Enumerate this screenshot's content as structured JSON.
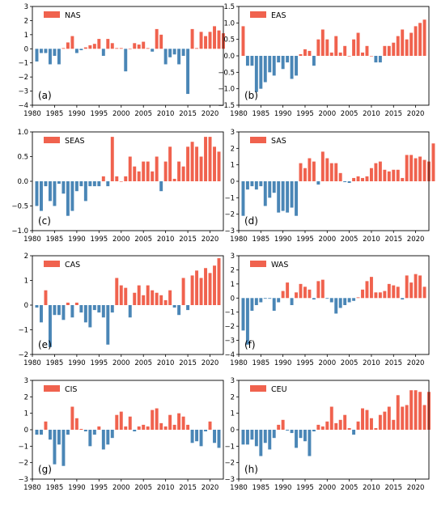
{
  "chart_data": [
    {
      "type": "bar",
      "panel": "a",
      "tag": "(a)",
      "legend": "NAS",
      "x_start": 1981,
      "values": [
        -0.9,
        -0.3,
        -0.3,
        -1.1,
        -0.5,
        -1.1,
        0.05,
        0.45,
        0.9,
        -0.3,
        -0.1,
        0.1,
        0.25,
        0.35,
        0.7,
        -0.5,
        0.7,
        0.4,
        0.05,
        0.05,
        -1.6,
        0.0,
        0.4,
        0.3,
        0.5,
        0.05,
        -0.2,
        1.4,
        1.0,
        -1.1,
        -0.6,
        -0.4,
        -1.1,
        -0.5,
        -3.2,
        1.4,
        0.05,
        1.2,
        0.9,
        1.2,
        1.6,
        1.3,
        1.1
      ],
      "ylim": [
        -4,
        3
      ],
      "yticks": [
        3,
        2,
        1,
        0,
        -1,
        -2,
        -3,
        -4
      ],
      "ytick_labels": [
        "3",
        "2",
        "1",
        "0",
        "−1",
        "−2",
        "−3",
        "−4"
      ],
      "xlim": [
        1980,
        2023
      ],
      "xticks": [
        1980,
        1985,
        1990,
        1995,
        2000,
        2005,
        2010,
        2015,
        2020
      ],
      "xtick_labels": [
        "1980",
        "1985",
        "1990",
        "1995",
        "2000",
        "2005",
        "2010",
        "2015",
        "2020"
      ]
    },
    {
      "type": "bar",
      "panel": "b",
      "tag": "(b)",
      "legend": "EAS",
      "x_start": 1981,
      "values": [
        0.9,
        -0.3,
        -0.3,
        -1.1,
        -1.0,
        -0.8,
        -0.5,
        -0.6,
        -0.2,
        -0.4,
        -0.2,
        -0.7,
        -0.6,
        0.05,
        0.2,
        0.15,
        -0.3,
        0.5,
        0.8,
        0.5,
        0.1,
        0.6,
        0.1,
        0.3,
        0.0,
        0.5,
        0.7,
        0.1,
        0.3,
        0.0,
        -0.2,
        -0.2,
        0.3,
        0.3,
        0.4,
        0.6,
        0.8,
        0.5,
        0.7,
        0.9,
        1.0,
        1.1
      ],
      "ylim": [
        -1.5,
        1.5
      ],
      "yticks": [
        1.5,
        1.0,
        0.5,
        0.0,
        -0.5,
        -1.0,
        -1.5
      ],
      "ytick_labels": [
        "1.5",
        "1.0",
        "0.5",
        "0.0",
        "−0.5",
        "−1.0",
        "−1.5"
      ],
      "xlim": [
        1980,
        2023
      ],
      "xticks": [
        1980,
        1985,
        1990,
        1995,
        2000,
        2005,
        2010,
        2015,
        2020
      ],
      "xtick_labels": [
        "1980",
        "1985",
        "1990",
        "1995",
        "2000",
        "2005",
        "2010",
        "2015",
        "2020"
      ]
    },
    {
      "type": "bar",
      "panel": "c",
      "tag": "(c)",
      "legend": "SEAS",
      "x_start": 1981,
      "values": [
        -0.5,
        -0.6,
        -0.1,
        -0.4,
        -0.5,
        -0.05,
        -0.25,
        -0.7,
        -0.6,
        -0.2,
        -0.1,
        -0.4,
        -0.1,
        -0.1,
        -0.1,
        0.1,
        -0.1,
        0.9,
        0.1,
        0.0,
        0.1,
        0.5,
        0.3,
        0.2,
        0.4,
        0.4,
        0.2,
        0.5,
        -0.2,
        0.4,
        0.7,
        0.05,
        0.4,
        0.3,
        0.7,
        0.8,
        0.7,
        0.5,
        0.9,
        0.9,
        0.7,
        0.6
      ],
      "ylim": [
        -1.0,
        1.0
      ],
      "yticks": [
        1.0,
        0.5,
        0.0,
        -0.5,
        -1.0
      ],
      "ytick_labels": [
        "1.0",
        "0.5",
        "0.0",
        "−0.5",
        "−1.0"
      ],
      "xlim": [
        1980,
        2023
      ],
      "xticks": [
        1980,
        1985,
        1990,
        1995,
        2000,
        2005,
        2010,
        2015,
        2020
      ],
      "xtick_labels": [
        "1980",
        "1985",
        "1990",
        "1995",
        "2000",
        "2005",
        "2010",
        "2015",
        "2020"
      ]
    },
    {
      "type": "bar",
      "panel": "d",
      "tag": "(d)",
      "legend": "SAS",
      "x_start": 1981,
      "values": [
        -2.1,
        -0.5,
        -0.3,
        -0.5,
        -0.3,
        -1.5,
        -1.0,
        -0.7,
        -1.9,
        -1.8,
        -1.9,
        -1.6,
        -2.1,
        1.1,
        0.8,
        1.4,
        1.2,
        -0.2,
        1.8,
        1.4,
        1.1,
        1.1,
        0.5,
        -0.05,
        -0.1,
        0.2,
        0.3,
        0.2,
        0.3,
        0.8,
        1.1,
        1.2,
        0.7,
        0.6,
        0.7,
        0.7,
        0.2,
        1.6,
        1.6,
        1.4,
        1.5,
        1.3,
        1.2,
        2.3
      ],
      "ylim": [
        -3,
        3
      ],
      "yticks": [
        3,
        2,
        1,
        0,
        -1,
        -2,
        -3
      ],
      "ytick_labels": [
        "3",
        "2",
        "1",
        "0",
        "−1",
        "−2",
        "−3"
      ],
      "xlim": [
        1980,
        2023
      ],
      "xticks": [
        1980,
        1985,
        1990,
        1995,
        2000,
        2005,
        2010,
        2015,
        2020
      ],
      "xtick_labels": [
        "1980",
        "1985",
        "1990",
        "1995",
        "2000",
        "2005",
        "2010",
        "2015",
        "2020"
      ]
    },
    {
      "type": "bar",
      "panel": "e",
      "tag": "(e)",
      "legend": "CAS",
      "x_start": 1981,
      "values": [
        -0.1,
        -0.7,
        0.6,
        -1.7,
        -0.4,
        -0.4,
        -0.6,
        0.1,
        -0.5,
        0.1,
        -0.3,
        -0.7,
        -0.9,
        -0.2,
        -0.3,
        -0.5,
        -1.6,
        -0.3,
        1.1,
        0.8,
        0.7,
        -0.5,
        0.5,
        0.8,
        0.4,
        0.8,
        0.6,
        0.5,
        0.4,
        0.2,
        0.6,
        -0.1,
        -0.4,
        1.1,
        -0.2,
        1.2,
        1.4,
        1.1,
        1.5,
        1.3,
        1.6,
        1.9
      ],
      "ylim": [
        -2,
        2
      ],
      "yticks": [
        2,
        1,
        0,
        -1,
        -2
      ],
      "ytick_labels": [
        "2",
        "1",
        "0",
        "−1",
        "−2"
      ],
      "xlim": [
        1980,
        2023
      ],
      "xticks": [
        1980,
        1985,
        1990,
        1995,
        2000,
        2005,
        2010,
        2015,
        2020
      ],
      "xtick_labels": [
        "1980",
        "1985",
        "1990",
        "1995",
        "2000",
        "2005",
        "2010",
        "2015",
        "2020"
      ]
    },
    {
      "type": "bar",
      "panel": "f",
      "tag": "(f)",
      "legend": "WAS",
      "x_start": 1981,
      "values": [
        -2.3,
        -3.3,
        -0.9,
        -0.5,
        -0.3,
        -0.05,
        -0.05,
        -0.9,
        -0.3,
        0.5,
        1.1,
        -0.5,
        0.4,
        1.0,
        0.8,
        0.6,
        -0.1,
        1.2,
        1.3,
        -0.05,
        -0.3,
        -1.1,
        -0.7,
        -0.5,
        -0.3,
        -0.2,
        0.05,
        0.6,
        1.2,
        1.5,
        0.4,
        0.4,
        0.5,
        1.0,
        0.9,
        0.8,
        -0.1,
        1.6,
        1.1,
        1.7,
        1.6,
        0.8
      ],
      "ylim": [
        -4,
        3
      ],
      "yticks": [
        3,
        2,
        1,
        0,
        -1,
        -2,
        -3,
        -4
      ],
      "ytick_labels": [
        "3",
        "2",
        "1",
        "0",
        "−1",
        "−2",
        "−3",
        "−4"
      ],
      "xlim": [
        1980,
        2023
      ],
      "xticks": [
        1980,
        1985,
        1990,
        1995,
        2000,
        2005,
        2010,
        2015,
        2020
      ],
      "xtick_labels": [
        "1980",
        "1985",
        "1990",
        "1995",
        "2000",
        "2005",
        "2010",
        "2015",
        "2020"
      ]
    },
    {
      "type": "bar",
      "panel": "g",
      "tag": "(g)",
      "legend": "CIS",
      "x_start": 1981,
      "values": [
        -0.3,
        -0.3,
        0.5,
        -0.6,
        -2.1,
        -0.9,
        -2.2,
        -0.3,
        1.4,
        0.7,
        0.05,
        -0.1,
        -1.0,
        -0.3,
        0.2,
        -1.2,
        -0.9,
        -0.5,
        0.9,
        1.1,
        0.2,
        0.8,
        -0.1,
        0.2,
        0.3,
        0.2,
        1.2,
        1.3,
        0.4,
        0.2,
        0.9,
        0.3,
        1.0,
        0.8,
        0.3,
        -0.8,
        -0.7,
        -1.0,
        -0.1,
        0.5,
        -0.8,
        -1.1
      ],
      "ylim": [
        -3,
        3
      ],
      "yticks": [
        3,
        2,
        1,
        0,
        -1,
        -2,
        -3
      ],
      "ytick_labels": [
        "3",
        "2",
        "1",
        "0",
        "−1",
        "−2",
        "−3"
      ],
      "xlim": [
        1980,
        2023
      ],
      "xticks": [
        1980,
        1985,
        1990,
        1995,
        2000,
        2005,
        2010,
        2015,
        2020
      ],
      "xtick_labels": [
        "1980",
        "1985",
        "1990",
        "1995",
        "2000",
        "2005",
        "2010",
        "2015",
        "2020"
      ]
    },
    {
      "type": "bar",
      "panel": "h",
      "tag": "(h)",
      "legend": "CEU",
      "x_start": 1981,
      "values": [
        -0.9,
        -0.9,
        -0.6,
        -1.0,
        -1.6,
        -0.8,
        -1.2,
        -0.5,
        0.3,
        0.6,
        -0.05,
        -0.2,
        -1.1,
        -0.5,
        -0.7,
        -1.6,
        -0.1,
        0.3,
        0.2,
        0.5,
        1.4,
        0.4,
        0.6,
        0.9,
        0.1,
        -0.3,
        0.5,
        1.3,
        1.2,
        0.7,
        0.1,
        0.9,
        1.1,
        1.4,
        0.6,
        2.1,
        1.4,
        1.5,
        2.4,
        2.4,
        2.3,
        1.5,
        2.3
      ],
      "ylim": [
        -3,
        3
      ],
      "yticks": [
        3,
        2,
        1,
        0,
        -1,
        -2,
        -3
      ],
      "ytick_labels": [
        "3",
        "2",
        "1",
        "0",
        "−1",
        "−2",
        "−3"
      ],
      "xlim": [
        1980,
        2023
      ],
      "xticks": [
        1980,
        1985,
        1990,
        1995,
        2000,
        2005,
        2010,
        2015,
        2020
      ],
      "xtick_labels": [
        "1980",
        "1985",
        "1990",
        "1995",
        "2000",
        "2005",
        "2010",
        "2015",
        "2020"
      ]
    }
  ],
  "colors": {
    "positive": "#f0624e",
    "negative": "#4a86b6",
    "axis": "#000000"
  }
}
